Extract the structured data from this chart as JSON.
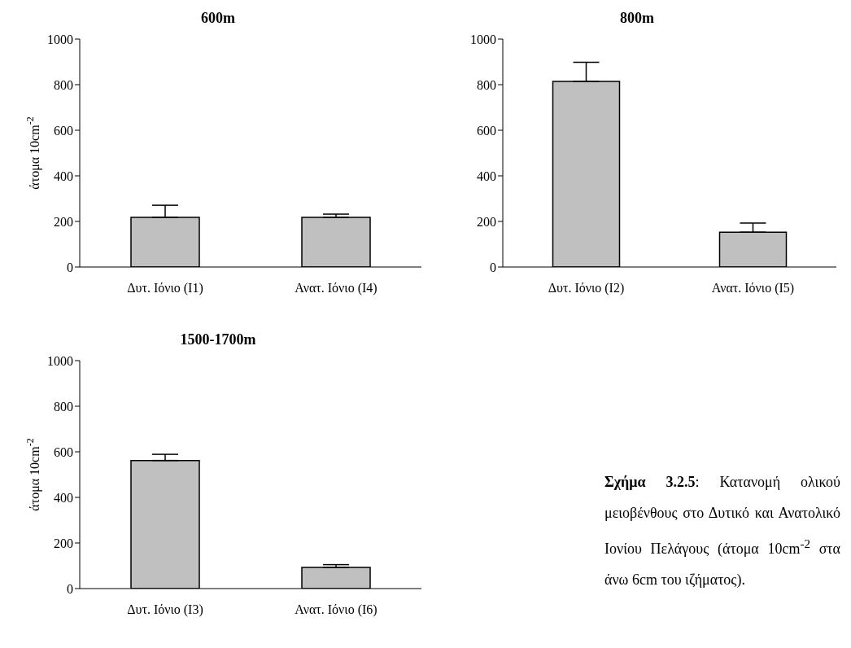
{
  "chart_data": [
    {
      "type": "bar",
      "title": "600m",
      "ylabel": "άτομα 10cm$^{-2}$",
      "categories": [
        "Δυτ. Ιόνιο (I1)",
        "Ανατ. Ιόνιο (I4)"
      ],
      "values": [
        218,
        218
      ],
      "errors": [
        [
          218,
          271
        ],
        [
          218,
          232
        ]
      ],
      "color": "#c0c0c0",
      "ylim": [
        0,
        1000
      ],
      "yticks": [
        0,
        200,
        400,
        600,
        800,
        1000
      ],
      "grid": false
    },
    {
      "type": "bar",
      "title": "800m",
      "categories": [
        "Δυτ. Ιόνιο (I2)",
        "Ανατ. Ιόνιο (I5)"
      ],
      "values": [
        814,
        153
      ],
      "errors": [
        [
          814,
          898
        ],
        [
          153,
          193
        ]
      ],
      "color": "#c0c0c0",
      "ylim": [
        0,
        1000
      ],
      "yticks": [
        0,
        200,
        400,
        600,
        800,
        1000
      ],
      "grid": false
    },
    {
      "type": "bar",
      "title": "1500-1700m",
      "ylabel": "άτομα 10cm$^{-2}$",
      "categories": [
        "Δυτ. Ιόνιο (I3)",
        "Ανατ. Ιόνιο (I6)"
      ],
      "values": [
        562,
        93
      ],
      "errors": [
        [
          562,
          589
        ],
        [
          93,
          105
        ]
      ],
      "color": "#c0c0c0",
      "ylim": [
        0,
        1000
      ],
      "yticks": [
        0,
        200,
        400,
        600,
        800,
        1000
      ],
      "grid": false
    },
    {
      "type": "other",
      "annotations": [
        "Σχήμα 3.2.5",
        ": Κατανομή ολικού μειοβένθους στο Δυτικό και Ανατολικό Ιονίου Πελάγους (άτομα 10cm$^{-2}$ στα άνω 6cm του ιζήματος)."
      ]
    }
  ]
}
